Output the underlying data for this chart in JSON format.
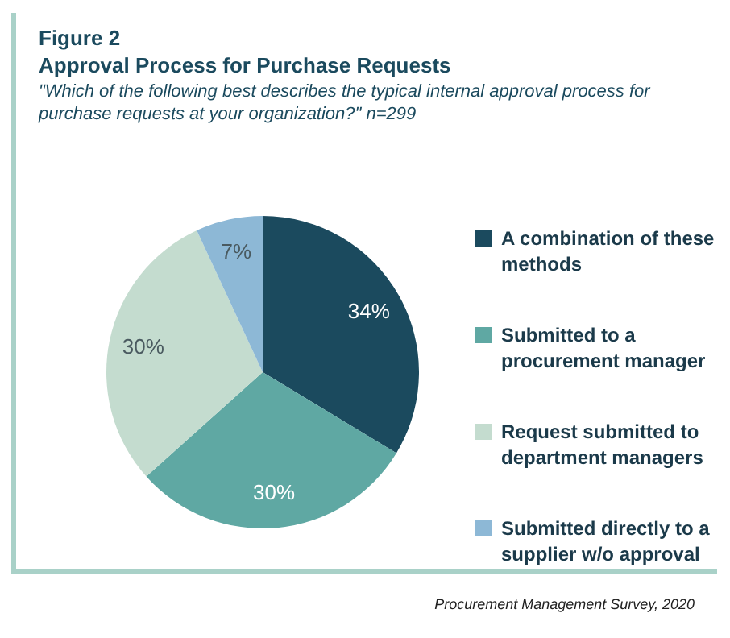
{
  "chart_data": {
    "type": "pie",
    "title": "Approval Process for Purchase Requests",
    "subtitle": "\"Which of the following best describes the typical internal approval process for purchase requests at your organization?\" n=299",
    "categories": [
      "A combination of these methods",
      "Submitted to a procurement manager",
      "Request submitted to department managers",
      "Submitted directly to a supplier w/o approval"
    ],
    "values": [
      34,
      30,
      30,
      7
    ],
    "colors": [
      "#1b4a5e",
      "#5fa8a3",
      "#c4dccf",
      "#8db8d6"
    ],
    "value_labels": [
      "34%",
      "30%",
      "30%",
      "7%"
    ],
    "legend": "right",
    "annotations": [
      "Figure 2",
      "Procurement Management Survey, 2020"
    ]
  }
}
